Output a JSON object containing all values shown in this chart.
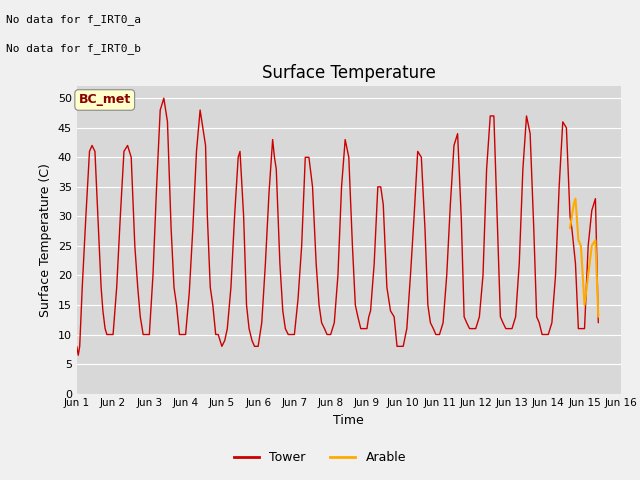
{
  "title": "Surface Temperature",
  "ylabel": "Surface Temperature (C)",
  "xlabel": "Time",
  "plot_bg_color": "#d8d8d8",
  "fig_bg_color": "#f0f0f0",
  "annotation_text1": "No data for f_IRT0_a",
  "annotation_text2": "No data for f_IRT0_b",
  "bc_met_label": "BC_met",
  "ylim": [
    0,
    52
  ],
  "yticks": [
    0,
    5,
    10,
    15,
    20,
    25,
    30,
    35,
    40,
    45,
    50
  ],
  "xtick_labels": [
    "Jun 1",
    "Jun 2",
    "Jun 3",
    "Jun 4",
    "Jun 5",
    "Jun 6",
    "Jun 7",
    "Jun 8",
    "Jun 9",
    "Jun 10",
    "Jun 11",
    "Jun 12",
    "Jun 13",
    "Jun 14",
    "Jun 15",
    "Jun 16"
  ],
  "tower_color": "#cc0000",
  "arable_color": "#ffaa00",
  "legend_items": [
    "Tower",
    "Arable"
  ],
  "tower_data_x": [
    1.0,
    1.04,
    1.08,
    1.15,
    1.25,
    1.35,
    1.42,
    1.5,
    1.58,
    1.67,
    1.72,
    1.78,
    1.83,
    1.88,
    2.0,
    2.1,
    2.2,
    2.3,
    2.4,
    2.5,
    2.6,
    2.68,
    2.75,
    2.83,
    2.9,
    3.0,
    3.1,
    3.2,
    3.3,
    3.4,
    3.5,
    3.6,
    3.68,
    3.75,
    3.83,
    3.9,
    4.0,
    4.1,
    4.2,
    4.3,
    4.4,
    4.5,
    4.55,
    4.6,
    4.68,
    4.75,
    4.83,
    4.9,
    5.0,
    5.08,
    5.15,
    5.25,
    5.35,
    5.45,
    5.5,
    5.6,
    5.68,
    5.75,
    5.83,
    5.9,
    6.0,
    6.1,
    6.2,
    6.3,
    6.4,
    6.45,
    6.5,
    6.6,
    6.68,
    6.75,
    6.83,
    6.9,
    7.0,
    7.1,
    7.2,
    7.3,
    7.4,
    7.5,
    7.6,
    7.68,
    7.75,
    7.83,
    7.9,
    8.0,
    8.1,
    8.2,
    8.3,
    8.4,
    8.5,
    8.6,
    8.68,
    8.75,
    8.83,
    8.9,
    9.0,
    9.05,
    9.1,
    9.2,
    9.3,
    9.38,
    9.45,
    9.55,
    9.65,
    9.75,
    9.83,
    9.9,
    10.0,
    10.1,
    10.2,
    10.3,
    10.4,
    10.5,
    10.6,
    10.68,
    10.75,
    10.83,
    10.9,
    11.0,
    11.1,
    11.2,
    11.3,
    11.4,
    11.5,
    11.6,
    11.68,
    11.75,
    11.83,
    11.9,
    12.0,
    12.1,
    12.2,
    12.3,
    12.4,
    12.5,
    12.6,
    12.68,
    12.75,
    12.83,
    12.9,
    13.0,
    13.1,
    13.2,
    13.3,
    13.4,
    13.5,
    13.6,
    13.68,
    13.75,
    13.83,
    13.9,
    14.0,
    14.1,
    14.2,
    14.3,
    14.4,
    14.5,
    14.6,
    14.65,
    14.7,
    14.75,
    14.83,
    14.9,
    15.0,
    15.1,
    15.2,
    15.3,
    15.38
  ],
  "tower_data_y": [
    8,
    6.5,
    8,
    18,
    30,
    41,
    42,
    41,
    30,
    18,
    14,
    11,
    10,
    10,
    10,
    18,
    30,
    41,
    42,
    40,
    25,
    18,
    13,
    10,
    10,
    10,
    20,
    35,
    48,
    50,
    46,
    28,
    18,
    15,
    10,
    10,
    10,
    17,
    28,
    41,
    48,
    44,
    42,
    30,
    18,
    15,
    10,
    10,
    8,
    9,
    11,
    18,
    30,
    40,
    41,
    30,
    15,
    11,
    9,
    8,
    8,
    12,
    22,
    34,
    43,
    40,
    38,
    22,
    14,
    11,
    10,
    10,
    10,
    16,
    25,
    40,
    40,
    35,
    22,
    15,
    12,
    11,
    10,
    10,
    12,
    20,
    35,
    43,
    40,
    25,
    15,
    13,
    11,
    11,
    11,
    13,
    14,
    22,
    35,
    35,
    32,
    18,
    14,
    13,
    8,
    8,
    8,
    11,
    20,
    30,
    41,
    40,
    28,
    15,
    12,
    11,
    10,
    10,
    12,
    20,
    32,
    42,
    44,
    30,
    13,
    12,
    11,
    11,
    11,
    13,
    20,
    38,
    47,
    47,
    28,
    13,
    12,
    11,
    11,
    11,
    13,
    22,
    38,
    47,
    44,
    28,
    13,
    12,
    10,
    10,
    10,
    12,
    20,
    35,
    46,
    45,
    30,
    28,
    25,
    22,
    11,
    11,
    11,
    25,
    31,
    33,
    12
  ],
  "arable_data_x": [
    14.6,
    14.65,
    14.7,
    14.75,
    14.83,
    14.9,
    15.0,
    15.1,
    15.2,
    15.3,
    15.38
  ],
  "arable_data_y": [
    28,
    30,
    32,
    33,
    26,
    25,
    15,
    20,
    25,
    26,
    13
  ]
}
